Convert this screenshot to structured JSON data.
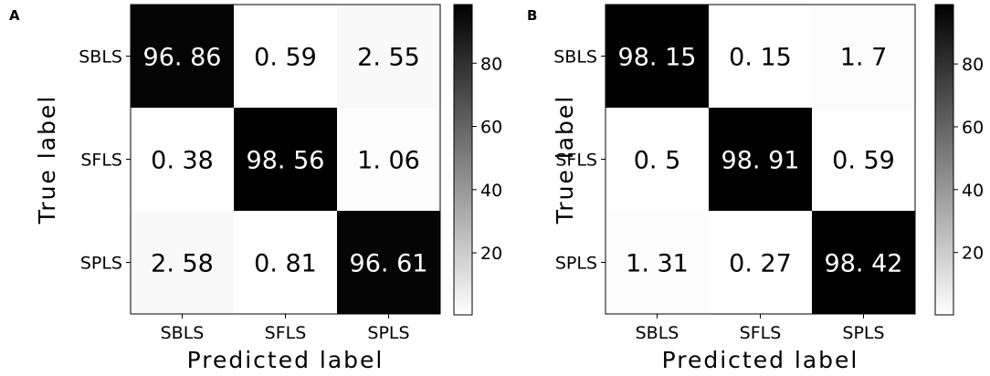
{
  "chart_data": [
    {
      "panel_label": "A",
      "type": "heatmap",
      "ylabel": "True label",
      "xlabel": "Predicted label",
      "x_categories": [
        "SBLS",
        "SFLS",
        "SPLS"
      ],
      "y_categories": [
        "SBLS",
        "SFLS",
        "SPLS"
      ],
      "cell_labels": [
        [
          "96. 86",
          "0. 59",
          "2. 55"
        ],
        [
          "0. 38",
          "98. 56",
          "1. 06"
        ],
        [
          "2. 58",
          "0. 81",
          "96. 61"
        ]
      ],
      "values": [
        [
          96.86,
          0.59,
          2.55
        ],
        [
          0.38,
          98.56,
          1.06
        ],
        [
          2.58,
          0.81,
          96.61
        ]
      ],
      "colorbar": {
        "ticks": [
          "20",
          "40",
          "60",
          "80"
        ],
        "range": [
          0.38,
          98.56
        ],
        "colormap": "white-to-black"
      }
    },
    {
      "panel_label": "B",
      "type": "heatmap",
      "ylabel": "True label",
      "xlabel": "Predicted label",
      "x_categories": [
        "SBLS",
        "SFLS",
        "SPLS"
      ],
      "y_categories": [
        "SBLS",
        "SFLS",
        "SPLS"
      ],
      "cell_labels": [
        [
          "98. 15",
          "0. 15",
          "1. 7"
        ],
        [
          "0. 5",
          "98. 91",
          "0. 59"
        ],
        [
          "1. 31",
          "0. 27",
          "98. 42"
        ]
      ],
      "values": [
        [
          98.15,
          0.15,
          1.7
        ],
        [
          0.5,
          98.91,
          0.59
        ],
        [
          1.31,
          0.27,
          98.42
        ]
      ],
      "colorbar": {
        "ticks": [
          "20",
          "40",
          "60",
          "80"
        ],
        "range": [
          0.15,
          98.91
        ],
        "colormap": "white-to-black"
      }
    }
  ]
}
